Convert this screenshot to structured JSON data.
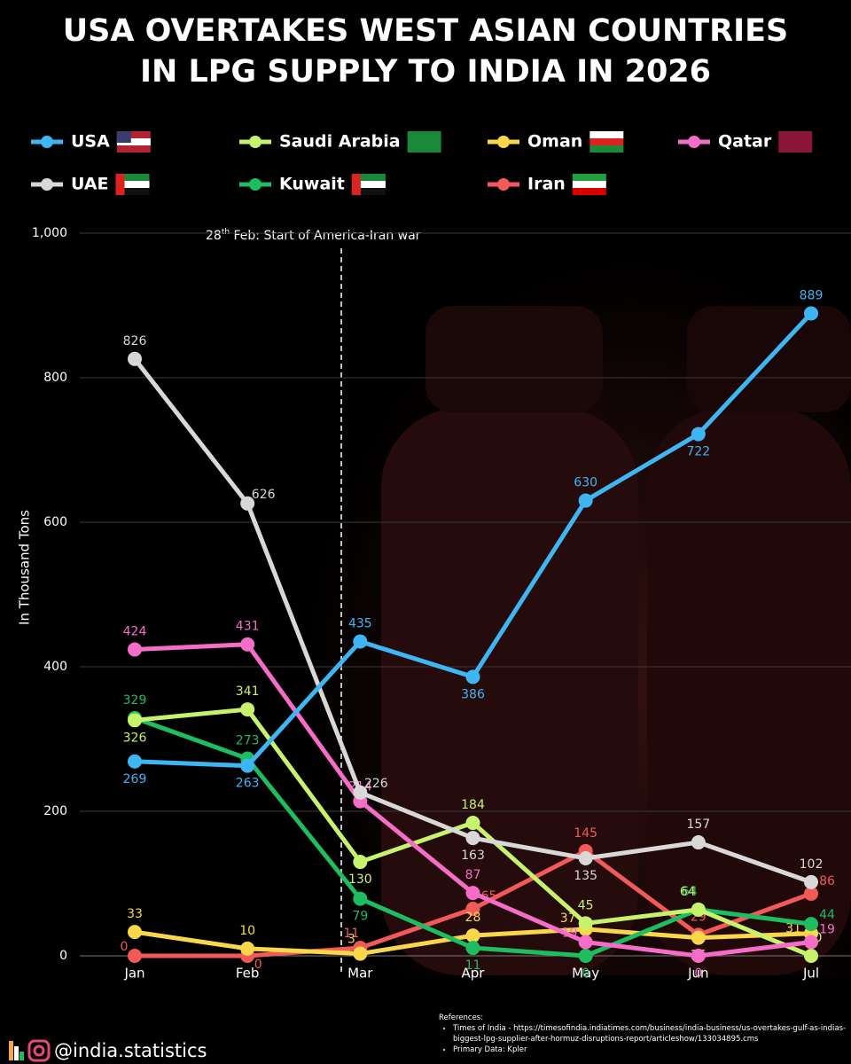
{
  "chart_data": {
    "type": "line",
    "title": [
      "USA OVERTAKES WEST ASIAN COUNTRIES",
      "IN LPG SUPPLY TO INDIA IN 2026"
    ],
    "categories": [
      "Jan",
      "Feb",
      "Mar",
      "Apr",
      "May",
      "Jun",
      "Jul"
    ],
    "y_label": "In Thousand Tons",
    "ylim": [
      0,
      1000
    ],
    "yticks": [
      0,
      200,
      400,
      600,
      800,
      {
        "value": 1000,
        "label": "1,000"
      }
    ],
    "grid": true,
    "annotation": {
      "day": "28",
      "suffix": "th",
      "text": " Feb: Start of America-Iran war"
    },
    "series": [
      {
        "name": "USA",
        "color": "#3fb6f4",
        "values": [
          269,
          263,
          435,
          386,
          630,
          722,
          889
        ]
      },
      {
        "name": "Saudi Arabia",
        "color": "#c6f36b",
        "values": [
          326,
          341,
          130,
          184,
          45,
          64,
          0
        ]
      },
      {
        "name": "Oman",
        "color": "#f8d84a",
        "values": [
          33,
          10,
          3,
          28,
          37,
          25,
          31
        ]
      },
      {
        "name": "Qatar",
        "color": "#f56dc8",
        "values": [
          424,
          431,
          214,
          87,
          19,
          0,
          19
        ]
      },
      {
        "name": "UAE",
        "color": "#d8d8d8",
        "values": [
          826,
          626,
          226,
          163,
          135,
          157,
          102
        ]
      },
      {
        "name": "Kuwait",
        "color": "#1dbd60",
        "values": [
          329,
          273,
          79,
          11,
          0,
          64,
          44
        ]
      },
      {
        "name": "Iran",
        "color": "#f25a5a",
        "values": [
          0,
          0,
          11,
          65,
          145,
          29,
          86
        ]
      }
    ]
  },
  "footer": {
    "handle": "@india.statistics",
    "references_title": "References:",
    "references": [
      "Times of India - https://timesofindia.indiatimes.com/business/india-business/us-overtakes-gulf-as-indias-biggest-lpg-supplier-after-hormuz-disruptions-report/articleshow/133034895.cms",
      "Primary Data: Kpler"
    ]
  }
}
